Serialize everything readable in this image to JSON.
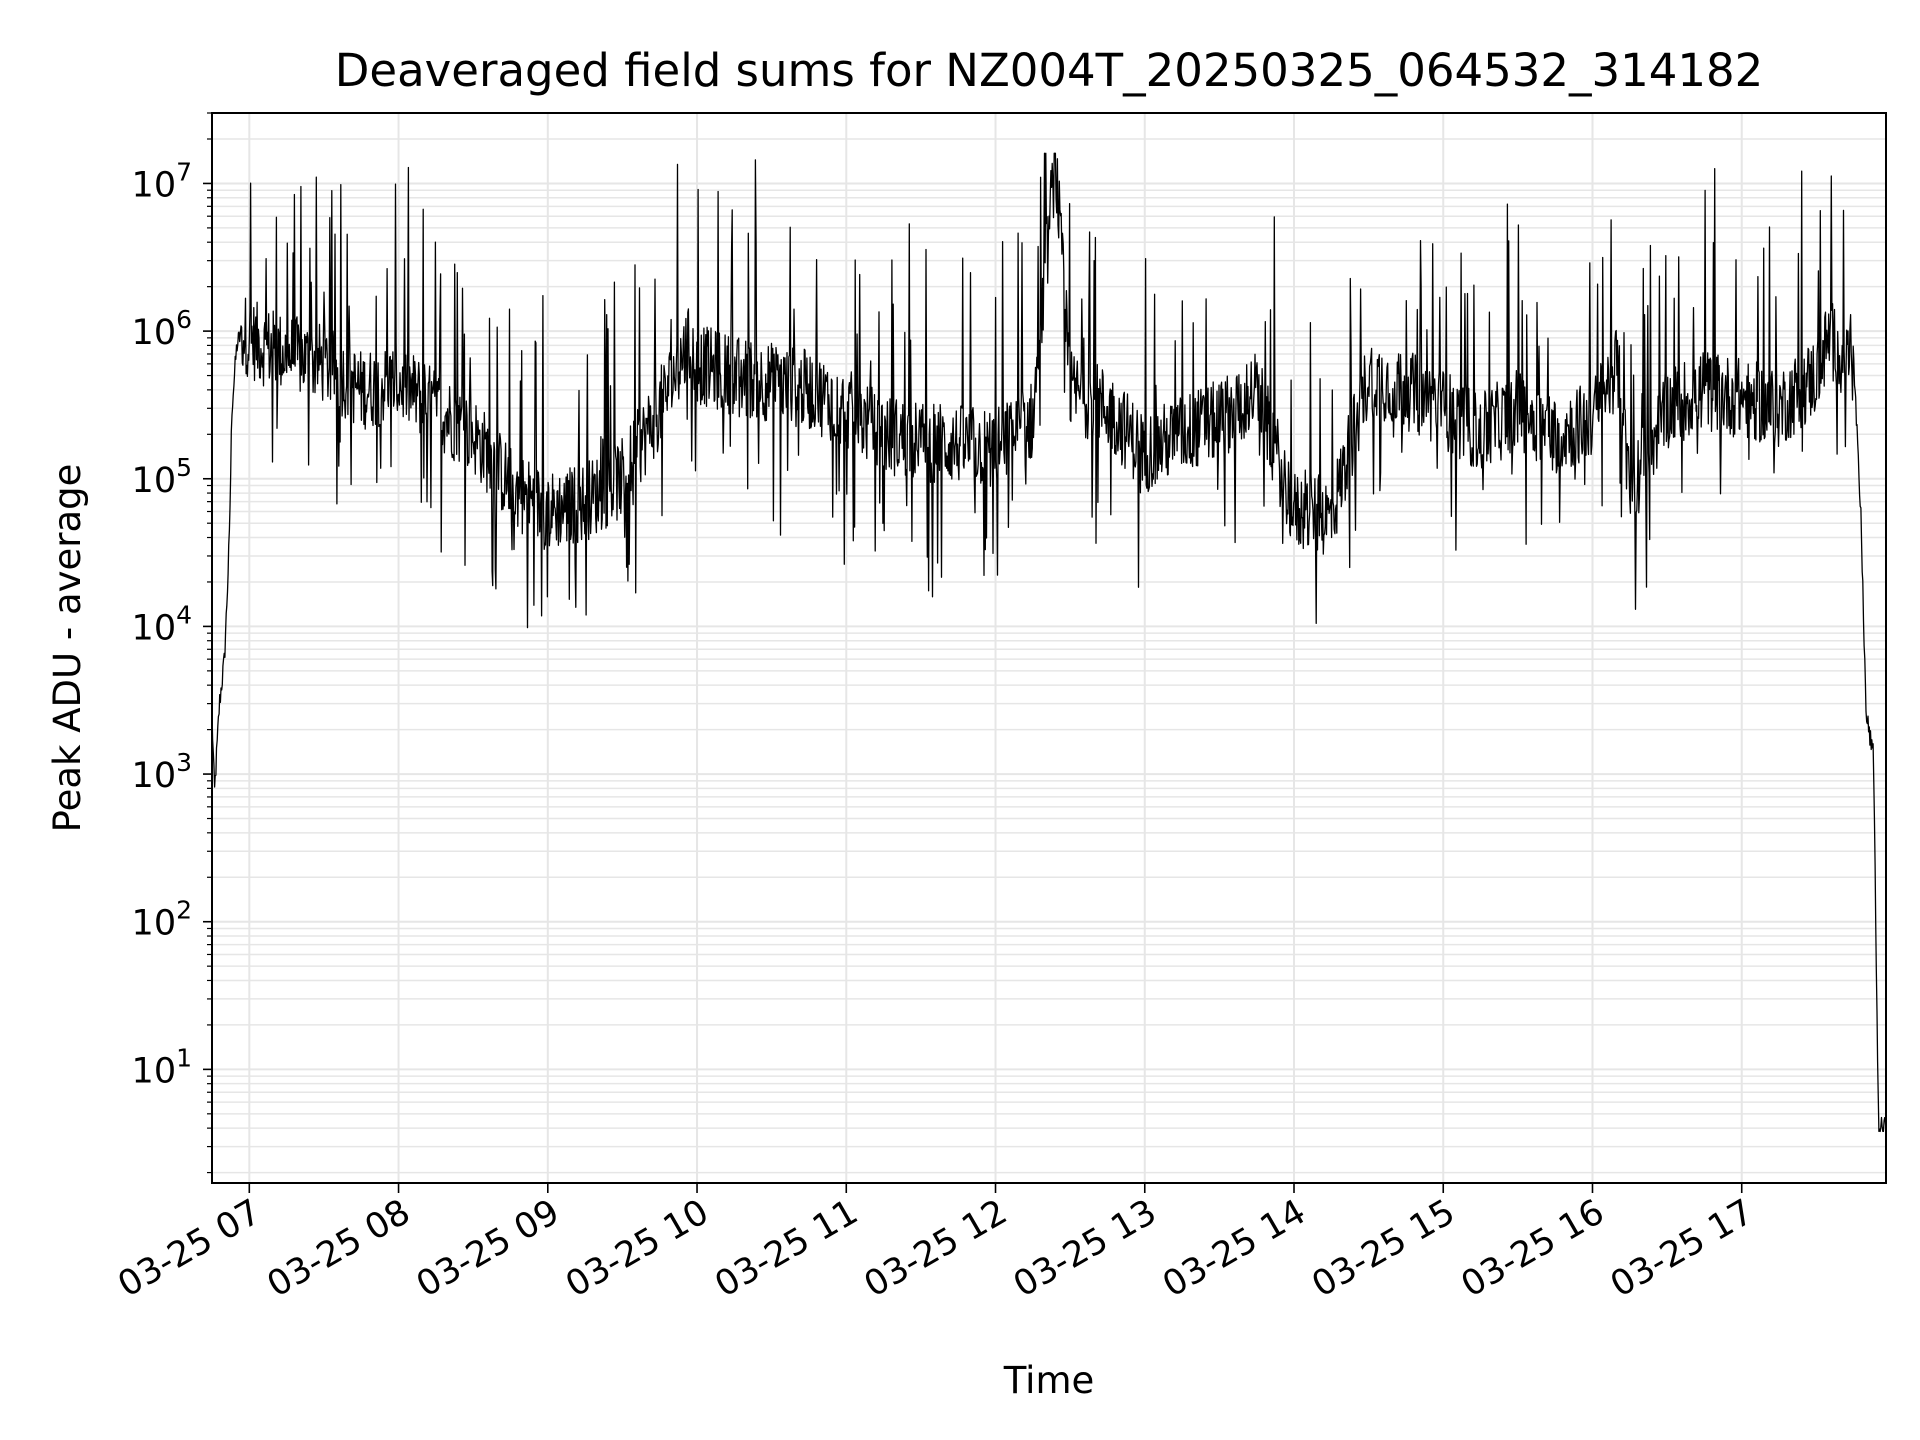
{
  "chart_data": {
    "type": "line",
    "title": "Deaveraged field sums for NZ004T_20250325_064532_314182",
    "xlabel": "Time",
    "ylabel": "Peak ADU - average",
    "yscale": "log",
    "grid": true,
    "ylim": [
      1.7,
      30000000
    ],
    "xlim": [
      "2025-03-25 06:45",
      "2025-03-25 17:58"
    ],
    "x_tick_labels": [
      "03-25 07",
      "03-25 08",
      "03-25 09",
      "03-25 10",
      "03-25 11",
      "03-25 12",
      "03-25 13",
      "03-25 14",
      "03-25 15",
      "03-25 16",
      "03-25 17"
    ],
    "y_tick_labels": [
      {
        "base": "10",
        "exp": "1"
      },
      {
        "base": "10",
        "exp": "2"
      },
      {
        "base": "10",
        "exp": "3"
      },
      {
        "base": "10",
        "exp": "4"
      },
      {
        "base": "10",
        "exp": "5"
      },
      {
        "base": "10",
        "exp": "6"
      },
      {
        "base": "10",
        "exp": "7"
      }
    ],
    "line_color": "#000000",
    "grid_color": "#e6e6e6",
    "series": [
      {
        "x": [
          "2025-03-25 06:45",
          "2025-03-25 06:46",
          "2025-03-25 06:48",
          "2025-03-25 06:50",
          "2025-03-25 06:51",
          "2025-03-25 06:52",
          "2025-03-25 06:53",
          "2025-03-25 06:55",
          "2025-03-25 06:57",
          "2025-03-25 07:00",
          "2025-03-25 07:05",
          "2025-03-25 07:15",
          "2025-03-25 07:30",
          "2025-03-25 07:45",
          "2025-03-25 08:00",
          "2025-03-25 08:15",
          "2025-03-25 08:30",
          "2025-03-25 08:45",
          "2025-03-25 09:00",
          "2025-03-25 09:15",
          "2025-03-25 09:30",
          "2025-03-25 09:45",
          "2025-03-25 09:56",
          "2025-03-25 10:00",
          "2025-03-25 10:15",
          "2025-03-25 10:30",
          "2025-03-25 10:45",
          "2025-03-25 11:00",
          "2025-03-25 11:15",
          "2025-03-25 11:30",
          "2025-03-25 11:45",
          "2025-03-25 12:00",
          "2025-03-25 12:15",
          "2025-03-25 12:24",
          "2025-03-25 12:30",
          "2025-03-25 12:45",
          "2025-03-25 13:00",
          "2025-03-25 13:15",
          "2025-03-25 13:30",
          "2025-03-25 13:45",
          "2025-03-25 14:00",
          "2025-03-25 14:15",
          "2025-03-25 14:30",
          "2025-03-25 14:45",
          "2025-03-25 15:00",
          "2025-03-25 15:15",
          "2025-03-25 15:30",
          "2025-03-25 15:45",
          "2025-03-25 16:00",
          "2025-03-25 16:10",
          "2025-03-25 16:15",
          "2025-03-25 16:30",
          "2025-03-25 16:45",
          "2025-03-25 17:00",
          "2025-03-25 17:15",
          "2025-03-25 17:30",
          "2025-03-25 17:35",
          "2025-03-25 17:40",
          "2025-03-25 17:45",
          "2025-03-25 17:48",
          "2025-03-25 17:50",
          "2025-03-25 17:53",
          "2025-03-25 17:55",
          "2025-03-25 17:58"
        ],
        "y": [
          2500,
          750,
          3000,
          6000,
          15000,
          40000,
          300000,
          800000,
          1000000,
          900000,
          800000,
          700000,
          600000,
          400000,
          450000,
          300000,
          200000,
          90000,
          60000,
          70000,
          100000,
          300000,
          800000,
          600000,
          500000,
          450000,
          400000,
          300000,
          200000,
          180000,
          170000,
          160000,
          250000,
          15000000,
          400000,
          300000,
          150000,
          200000,
          250000,
          400000,
          60000,
          55000,
          500000,
          400000,
          300000,
          200000,
          300000,
          200000,
          250000,
          600000,
          80000,
          300000,
          400000,
          350000,
          300000,
          500000,
          900000,
          700000,
          600000,
          50000,
          2500,
          1300,
          4,
          4
        ]
      }
    ]
  }
}
